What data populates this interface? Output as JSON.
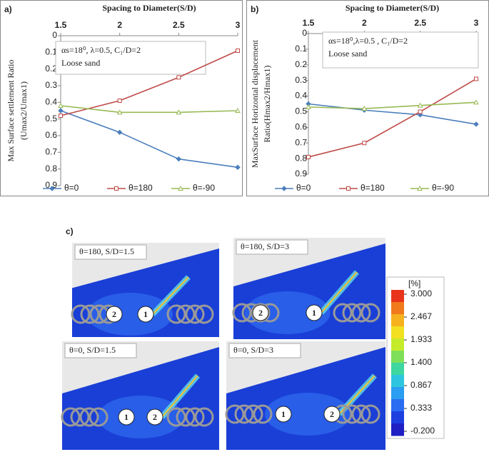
{
  "chart_data": [
    {
      "type": "line",
      "panel_label": "a)",
      "xlabel": "Spacing to Diameter(S/D)",
      "ylabel": [
        "Max Surface settlement Ratio",
        "(Umax2/Umax1)"
      ],
      "annotation": [
        "αs=18⁰, λ=0.5, C₁/D=2",
        "Loose sand"
      ],
      "x": [
        1.5,
        2,
        2.5,
        3
      ],
      "xlim": [
        1.5,
        3
      ],
      "xticks": [
        1.5,
        2,
        2.5,
        3
      ],
      "ylim": [
        0,
        0.9
      ],
      "yticks": [
        0,
        0.1,
        0.2,
        0.3,
        0.4,
        0.5,
        0.6,
        0.7,
        0.8,
        0.9
      ],
      "y_inverted": true,
      "x_axis_position": "top",
      "legend": "bottom",
      "series": [
        {
          "name": "θ=0",
          "color": "#4a7ebb",
          "marker": "diamond",
          "values": [
            0.45,
            0.58,
            0.74,
            0.79
          ]
        },
        {
          "name": "θ=180",
          "color": "#be4b48",
          "marker": "square",
          "values": [
            0.48,
            0.39,
            0.25,
            0.09
          ]
        },
        {
          "name": "θ=-90",
          "color": "#98b954",
          "marker": "triangle",
          "values": [
            0.42,
            0.46,
            0.46,
            0.45
          ]
        }
      ]
    },
    {
      "type": "line",
      "panel_label": "b)",
      "xlabel": "Spacing to Diameter(S/D)",
      "ylabel": [
        "MaxSurface Horizontal displacement",
        "Ratio(Hmax2/Hmax1)"
      ],
      "annotation": [
        "αs=18⁰,λ=0.5 , C₁/D=2",
        "Loose sand"
      ],
      "x": [
        1.5,
        2,
        2.5,
        3
      ],
      "xlim": [
        1.5,
        3
      ],
      "xticks": [
        1.5,
        2,
        2.5,
        3
      ],
      "ylim": [
        0,
        0.9
      ],
      "yticks": [
        0,
        0.1,
        0.2,
        0.3,
        0.4,
        0.5,
        0.6,
        0.7,
        0.8,
        0.9
      ],
      "y_inverted": true,
      "x_axis_position": "top",
      "legend": "bottom",
      "series": [
        {
          "name": "θ=0",
          "color": "#4a7ebb",
          "marker": "diamond",
          "values": [
            0.45,
            0.49,
            0.52,
            0.58
          ]
        },
        {
          "name": "θ=180",
          "color": "#be4b48",
          "marker": "square",
          "values": [
            0.79,
            0.7,
            0.5,
            0.29
          ]
        },
        {
          "name": "θ=-90",
          "color": "#98b954",
          "marker": "triangle",
          "values": [
            0.47,
            0.48,
            0.46,
            0.44
          ]
        }
      ]
    }
  ],
  "panel_c": {
    "label": "c)",
    "images": [
      {
        "caption": "θ=180, S/D=1.5",
        "piles": [
          "2",
          "1"
        ]
      },
      {
        "caption": "θ=180, S/D=3",
        "piles": [
          "2",
          "1"
        ]
      },
      {
        "caption": "θ=0, S/D=1.5",
        "piles": [
          "1",
          "2"
        ]
      },
      {
        "caption": "θ=0, S/D=3",
        "piles": [
          "1",
          "2"
        ]
      }
    ],
    "colorbar": {
      "unit": "[%]",
      "ticks": [
        {
          "value": 3,
          "label": "3.000"
        },
        {
          "value": 2.467,
          "label": "2.467"
        },
        {
          "value": 1.933,
          "label": "1.933"
        },
        {
          "value": 1.4,
          "label": "1.400"
        },
        {
          "value": 0.867,
          "label": "0.867"
        },
        {
          "value": 0.333,
          "label": "0.333"
        },
        {
          "value": -0.2,
          "label": "-0.200"
        }
      ]
    }
  }
}
